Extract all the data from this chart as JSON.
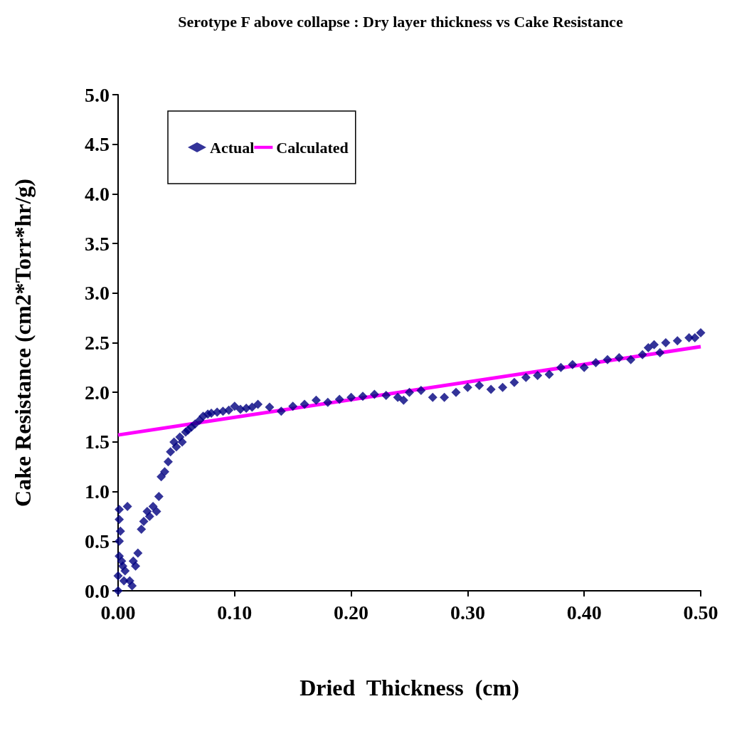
{
  "chart_data": {
    "type": "scatter",
    "title": "Serotype F above collapse : Dry layer thickness vs Cake Resistance",
    "xlabel": "Dried  Thickness  (cm)",
    "ylabel": "Cake Resistance (cm2*Torr*hr/g)",
    "xlim": [
      0,
      0.5
    ],
    "xticks": [
      {
        "value": 0,
        "label": "0.00"
      },
      {
        "value": 0.1,
        "label": "0.10"
      },
      {
        "value": 0.2,
        "label": "0.20"
      },
      {
        "value": 0.3,
        "label": "0.30"
      },
      {
        "value": 0.4,
        "label": "0.40"
      },
      {
        "value": 0.5,
        "label": "0.50"
      }
    ],
    "ylim": [
      0,
      5
    ],
    "yticks": [
      {
        "value": 0,
        "label": "0.0"
      },
      {
        "value": 0.5,
        "label": "0.5"
      },
      {
        "value": 1,
        "label": "1.0"
      },
      {
        "value": 1.5,
        "label": "1.5"
      },
      {
        "value": 2,
        "label": "2.0"
      },
      {
        "value": 2.5,
        "label": "2.5"
      },
      {
        "value": 3,
        "label": "3.0"
      },
      {
        "value": 3.5,
        "label": "3.5"
      },
      {
        "value": 4,
        "label": "4.0"
      },
      {
        "value": 4.5,
        "label": "4.5"
      },
      {
        "value": 5,
        "label": "5.0"
      }
    ],
    "grid": false,
    "legend": "top left",
    "marker": "diamond",
    "series": [
      {
        "name": "Calculated",
        "type": "line",
        "color": "#ff00ff",
        "marker": "none",
        "line_style": "solid",
        "x": [
          0,
          0.5
        ],
        "values": [
          1.57,
          2.46
        ]
      },
      {
        "name": "Actual",
        "color": "#000080",
        "x": [
          0,
          0,
          0.001,
          0.001,
          0.001,
          0.001,
          0.002,
          0.003,
          0.004,
          0.005,
          0.006,
          0.008,
          0.01,
          0.012,
          0.013,
          0.015,
          0.017,
          0.02,
          0.022,
          0.025,
          0.027,
          0.03,
          0.033,
          0.035,
          0.037,
          0.04,
          0.043,
          0.045,
          0.048,
          0.05,
          0.053,
          0.055,
          0.058,
          0.06,
          0.063,
          0.066,
          0.07,
          0.073,
          0.077,
          0.08,
          0.085,
          0.09,
          0.095,
          0.1,
          0.105,
          0.11,
          0.115,
          0.12,
          0.13,
          0.14,
          0.15,
          0.16,
          0.17,
          0.18,
          0.19,
          0.2,
          0.21,
          0.22,
          0.23,
          0.24,
          0.245,
          0.25,
          0.26,
          0.27,
          0.28,
          0.29,
          0.3,
          0.31,
          0.32,
          0.33,
          0.34,
          0.35,
          0.36,
          0.37,
          0.38,
          0.39,
          0.4,
          0.41,
          0.42,
          0.43,
          0.44,
          0.45,
          0.455,
          0.46,
          0.465,
          0.47,
          0.48,
          0.49,
          0.495,
          0.5
        ],
        "values": [
          0,
          0.15,
          0.35,
          0.5,
          0.72,
          0.82,
          0.6,
          0.3,
          0.25,
          0.1,
          0.2,
          0.85,
          0.1,
          0.05,
          0.3,
          0.25,
          0.38,
          0.62,
          0.7,
          0.8,
          0.75,
          0.85,
          0.8,
          0.95,
          1.15,
          1.2,
          1.3,
          1.4,
          1.5,
          1.45,
          1.55,
          1.5,
          1.6,
          1.62,
          1.65,
          1.68,
          1.72,
          1.76,
          1.78,
          1.79,
          1.8,
          1.81,
          1.82,
          1.86,
          1.83,
          1.84,
          1.85,
          1.88,
          1.85,
          1.81,
          1.86,
          1.88,
          1.92,
          1.9,
          1.93,
          1.95,
          1.96,
          1.98,
          1.97,
          1.95,
          1.92,
          2.0,
          2.02,
          1.95,
          1.95,
          2.0,
          2.05,
          2.07,
          2.03,
          2.05,
          2.1,
          2.15,
          2.17,
          2.18,
          2.25,
          2.28,
          2.25,
          2.3,
          2.33,
          2.35,
          2.33,
          2.38,
          2.45,
          2.48,
          2.4,
          2.5,
          2.52,
          2.55,
          2.55,
          2.6
        ]
      }
    ]
  }
}
